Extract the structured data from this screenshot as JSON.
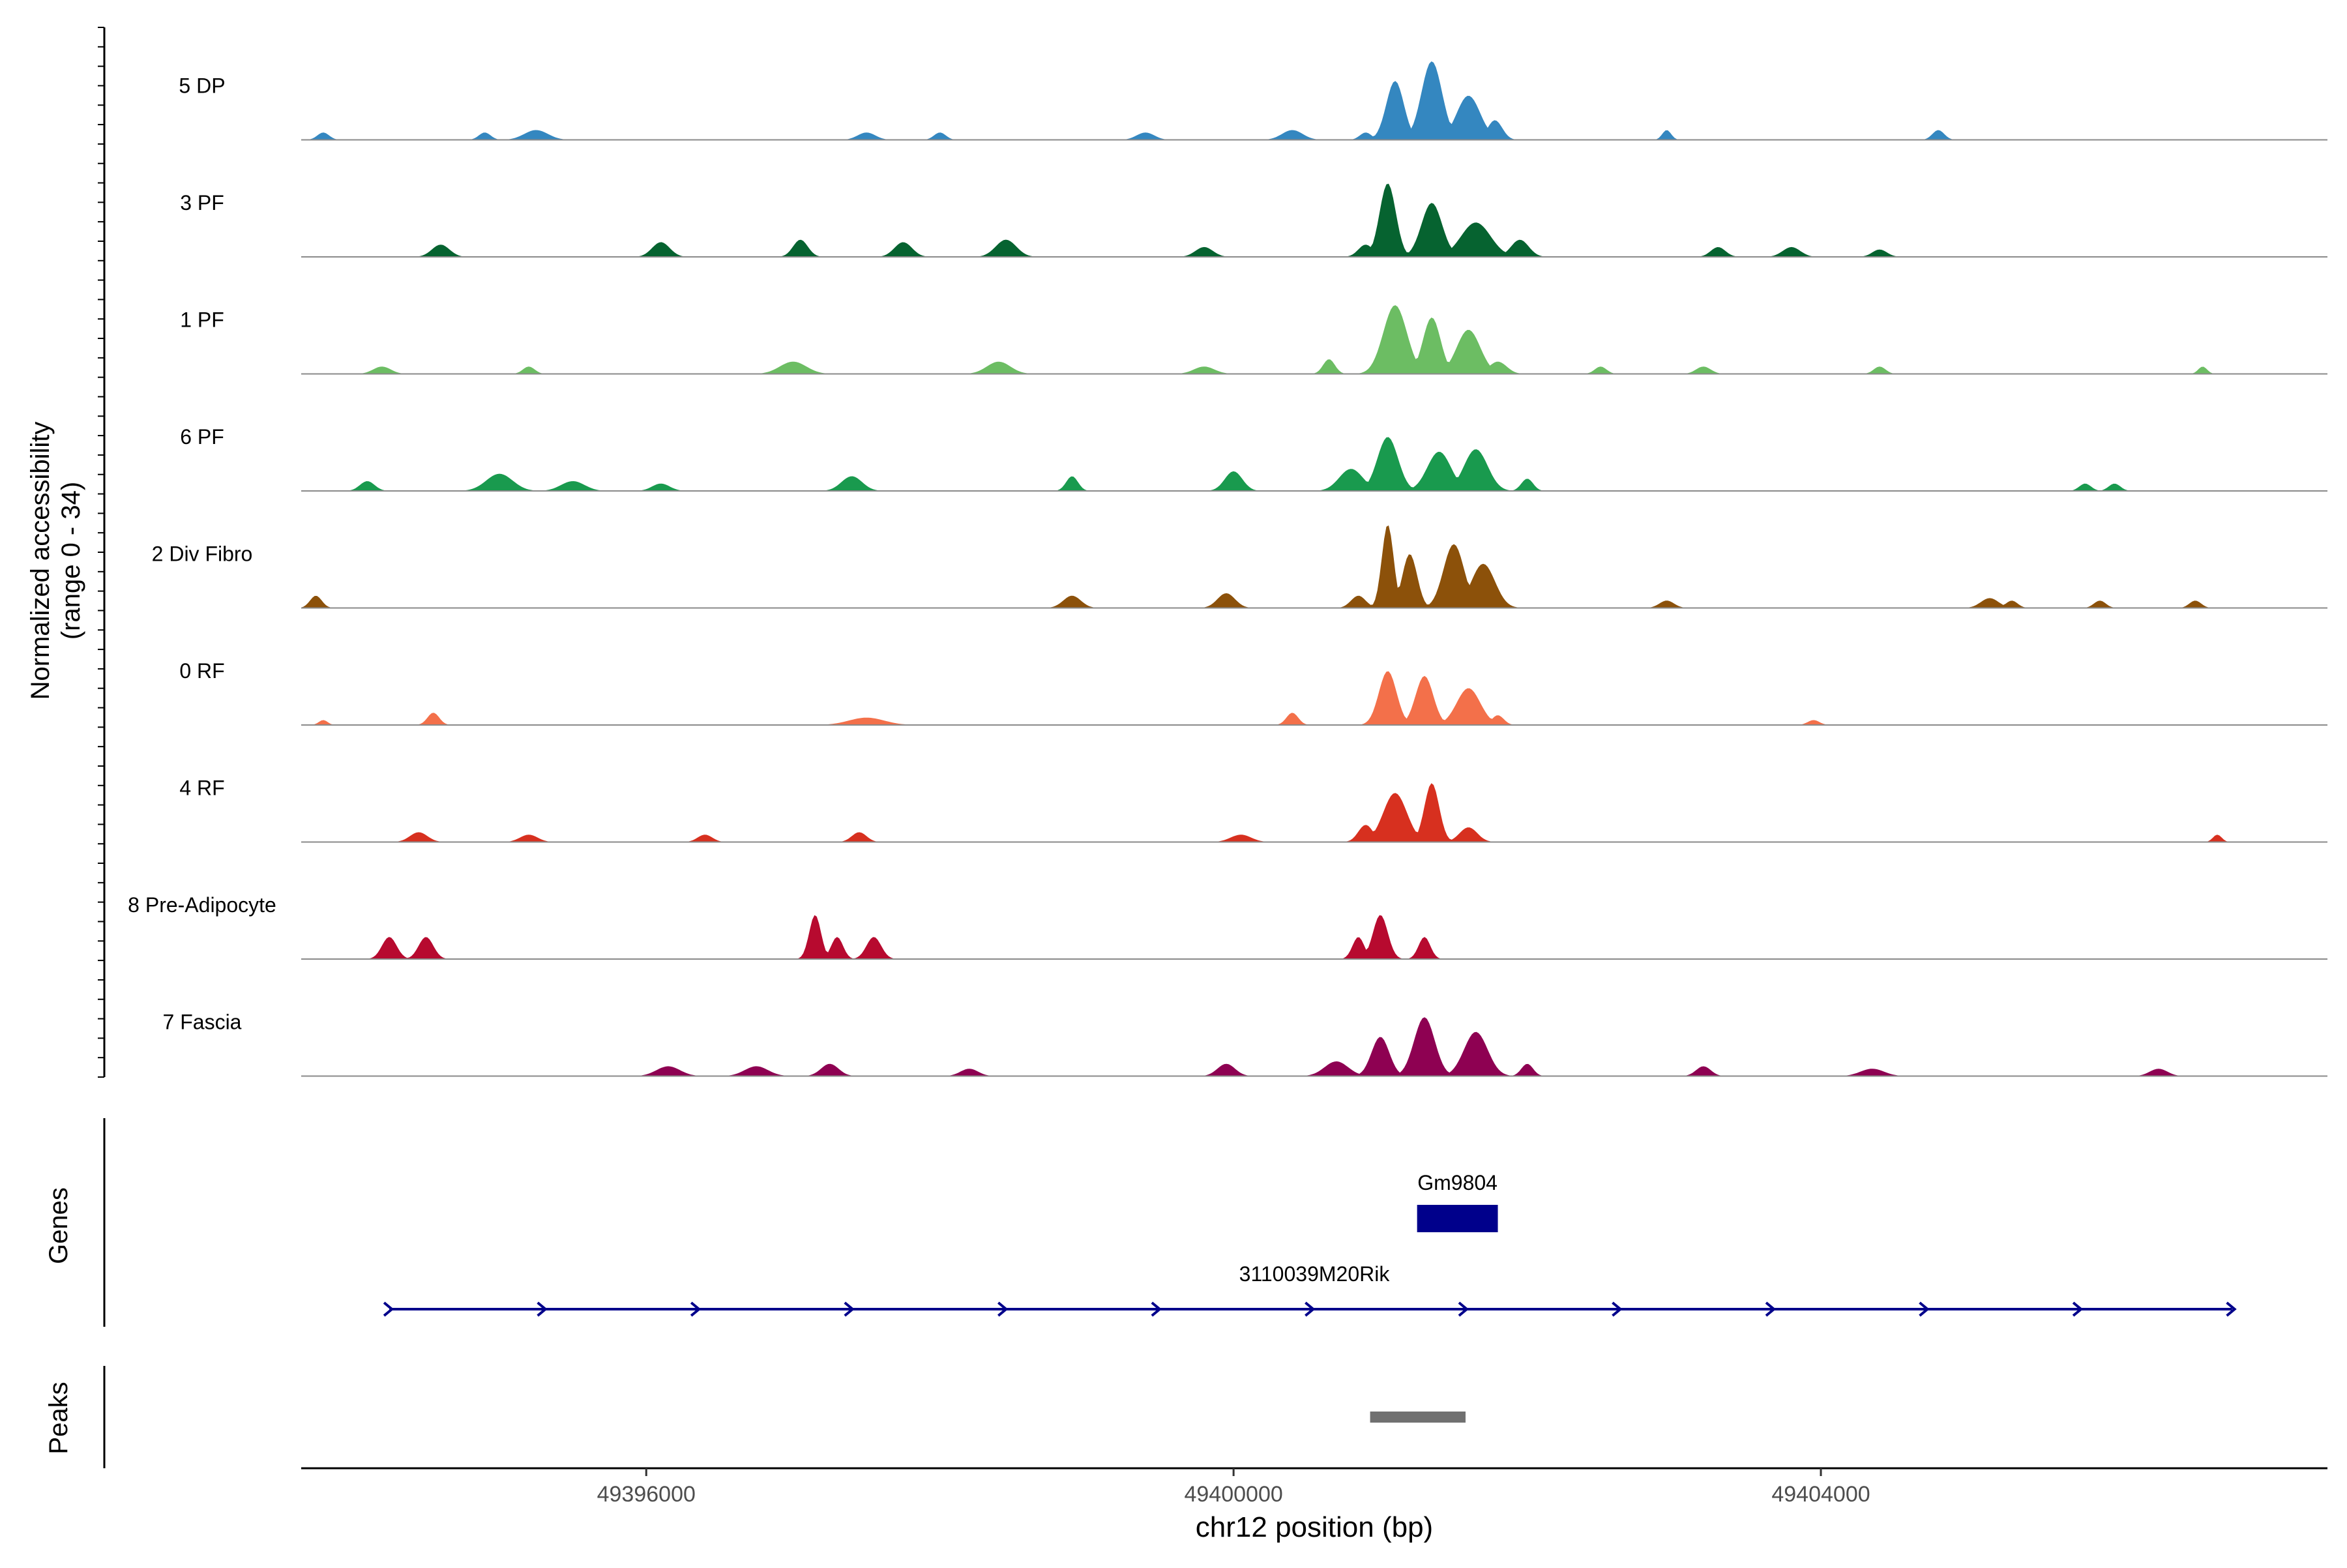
{
  "chart_data": {
    "type": "area",
    "title": "",
    "ylabel_line1": "Normalized accessibility",
    "ylabel_line2": "(range 0 - 34)",
    "xlabel": "chr12 position (bp)",
    "xlim": [
      49393650,
      49407450
    ],
    "x_ticks": [
      49396000,
      49400000,
      49404000
    ],
    "x_tick_labels": [
      "49396000",
      "49400000",
      "49404000"
    ],
    "y_range": [
      0,
      34
    ],
    "tracks": [
      {
        "name": "5 DP",
        "color": "#3487C0",
        "peaks": [
          [
            49401100,
            60,
            24
          ],
          [
            49401350,
            70,
            32
          ],
          [
            49401600,
            80,
            18
          ],
          [
            49401780,
            50,
            8
          ],
          [
            49400400,
            70,
            4
          ],
          [
            49395250,
            80,
            4
          ],
          [
            49393800,
            40,
            3
          ],
          [
            49394900,
            40,
            3
          ],
          [
            49400900,
            40,
            3
          ],
          [
            49402950,
            30,
            4
          ],
          [
            49404800,
            40,
            4
          ],
          [
            49399400,
            60,
            3
          ],
          [
            49397500,
            60,
            3
          ],
          [
            49398000,
            40,
            3
          ]
        ]
      },
      {
        "name": "3 PF",
        "color": "#066330",
        "peaks": [
          [
            49401050,
            55,
            30
          ],
          [
            49401350,
            70,
            22
          ],
          [
            49401650,
            100,
            14
          ],
          [
            49400900,
            50,
            5
          ],
          [
            49401950,
            60,
            7
          ],
          [
            49394600,
            60,
            5
          ],
          [
            49396100,
            60,
            6
          ],
          [
            49397050,
            50,
            7
          ],
          [
            49397750,
            60,
            6
          ],
          [
            49398450,
            70,
            7
          ],
          [
            49399800,
            60,
            4
          ],
          [
            49403300,
            50,
            4
          ],
          [
            49403800,
            60,
            4
          ],
          [
            49404400,
            50,
            3
          ]
        ]
      },
      {
        "name": "1 PF",
        "color": "#6CBD63",
        "peaks": [
          [
            49401100,
            80,
            28
          ],
          [
            49401350,
            60,
            23
          ],
          [
            49401600,
            80,
            18
          ],
          [
            49401800,
            60,
            5
          ],
          [
            49400650,
            40,
            6
          ],
          [
            49397000,
            90,
            5
          ],
          [
            49398400,
            80,
            5
          ],
          [
            49394200,
            60,
            3
          ],
          [
            49395200,
            40,
            3
          ],
          [
            49399800,
            70,
            3
          ],
          [
            49402500,
            40,
            3
          ],
          [
            49403200,
            50,
            3
          ],
          [
            49404400,
            40,
            3
          ],
          [
            49406600,
            30,
            3
          ]
        ]
      },
      {
        "name": "6 PF",
        "color": "#199A4E",
        "peaks": [
          [
            49401050,
            70,
            22
          ],
          [
            49401400,
            80,
            16
          ],
          [
            49401650,
            80,
            17
          ],
          [
            49400000,
            60,
            8
          ],
          [
            49400800,
            80,
            9
          ],
          [
            49395000,
            90,
            7
          ],
          [
            49395500,
            80,
            4
          ],
          [
            49397400,
            70,
            6
          ],
          [
            49398900,
            40,
            6
          ],
          [
            49394100,
            50,
            4
          ],
          [
            49396100,
            60,
            3
          ],
          [
            49402000,
            40,
            5
          ],
          [
            49405800,
            40,
            3
          ],
          [
            49406000,
            40,
            3
          ]
        ]
      },
      {
        "name": "2 Div Fibro",
        "color": "#8C510A",
        "peaks": [
          [
            49401050,
            40,
            34
          ],
          [
            49401200,
            50,
            22
          ],
          [
            49401500,
            70,
            26
          ],
          [
            49401700,
            80,
            18
          ],
          [
            49400850,
            50,
            5
          ],
          [
            49399950,
            60,
            6
          ],
          [
            49398900,
            60,
            5
          ],
          [
            49393750,
            40,
            5
          ],
          [
            49402950,
            50,
            3
          ],
          [
            49405150,
            60,
            4
          ],
          [
            49405300,
            40,
            3
          ],
          [
            49405900,
            40,
            3
          ],
          [
            49406550,
            40,
            3
          ]
        ]
      },
      {
        "name": "0 RF",
        "color": "#F3704A",
        "peaks": [
          [
            49401050,
            60,
            22
          ],
          [
            49401300,
            60,
            20
          ],
          [
            49401600,
            80,
            15
          ],
          [
            49400400,
            40,
            5
          ],
          [
            49401800,
            40,
            4
          ],
          [
            49394550,
            40,
            5
          ],
          [
            49397500,
            120,
            3
          ],
          [
            49393800,
            30,
            2
          ],
          [
            49403950,
            40,
            2
          ]
        ]
      },
      {
        "name": "4 RF",
        "color": "#D7301F",
        "peaks": [
          [
            49401100,
            80,
            20
          ],
          [
            49401350,
            50,
            24
          ],
          [
            49400900,
            50,
            7
          ],
          [
            49401600,
            60,
            6
          ],
          [
            49394450,
            60,
            4
          ],
          [
            49395200,
            60,
            3
          ],
          [
            49396400,
            50,
            3
          ],
          [
            49397450,
            50,
            4
          ],
          [
            49400050,
            70,
            3
          ],
          [
            49406700,
            30,
            3
          ]
        ]
      },
      {
        "name": "8 Pre-Adipocyte",
        "color": "#B70A2F",
        "peaks": [
          [
            49394250,
            50,
            9
          ],
          [
            49394500,
            50,
            9
          ],
          [
            49397150,
            40,
            18
          ],
          [
            49397300,
            40,
            9
          ],
          [
            49397550,
            50,
            9
          ],
          [
            49400850,
            40,
            9
          ],
          [
            49401000,
            50,
            18
          ],
          [
            49401300,
            40,
            9
          ]
        ]
      },
      {
        "name": "7 Fascia",
        "color": "#8E0152",
        "peaks": [
          [
            49401000,
            60,
            16
          ],
          [
            49401300,
            70,
            24
          ],
          [
            49401650,
            80,
            18
          ],
          [
            49400700,
            80,
            6
          ],
          [
            49399950,
            60,
            5
          ],
          [
            49396150,
            80,
            4
          ],
          [
            49396750,
            80,
            4
          ],
          [
            49397250,
            60,
            5
          ],
          [
            49398200,
            60,
            3
          ],
          [
            49402000,
            40,
            5
          ],
          [
            49403200,
            50,
            4
          ],
          [
            49404350,
            80,
            3
          ],
          [
            49406300,
            60,
            3
          ]
        ]
      }
    ],
    "genes": [
      {
        "name": "Gm9804",
        "start": 49401250,
        "end": 49401800,
        "type": "block"
      },
      {
        "name": "3110039M20Rik",
        "start": 49394250,
        "end": 49406800,
        "type": "line",
        "strand": "+"
      }
    ],
    "peak_regions": [
      {
        "start": 49400930,
        "end": 49401580
      }
    ],
    "panel_labels": {
      "genes": "Genes",
      "peaks": "Peaks"
    },
    "colors": {
      "gene": "#00008B",
      "peak": "#707070",
      "baseline": "#8a8a8a"
    }
  }
}
